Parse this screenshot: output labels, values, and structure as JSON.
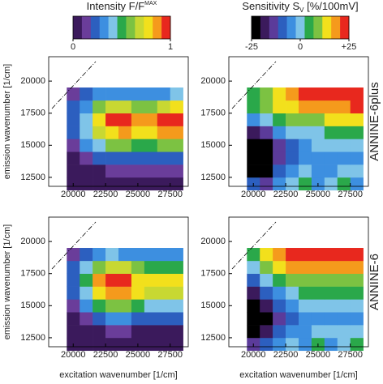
{
  "chart_data": [
    {
      "type": "heatmap",
      "colorbar": {
        "title": "Intensity F/F",
        "title_superscript": "MAX",
        "zlim": [
          0,
          1
        ],
        "ticks": [
          0,
          1
        ],
        "colors": [
          "#3b1a5c",
          "#6a3d9a",
          "#2c5fbf",
          "#3d8fe0",
          "#7fc4e8",
          "#2aa84a",
          "#7cc242",
          "#c8d832",
          "#f2e01c",
          "#f59a1c",
          "#e8281e"
        ]
      },
      "ylabel": "emission wavenumber [1/cm]",
      "xlabel": "excitation wavenumber [1/cm]",
      "xlim": [
        18100,
        28900
      ],
      "ylim": [
        11800,
        21900
      ],
      "xticks": [
        20000,
        22500,
        25000,
        27500
      ],
      "yticks": [
        12500,
        15000,
        17500,
        20000
      ],
      "x": [
        20000,
        21000,
        22000,
        23000,
        24000,
        25000,
        26000,
        27000,
        28000
      ],
      "y": [
        12000,
        13000,
        14000,
        15000,
        16000,
        17000,
        18000,
        19000
      ],
      "panels": [
        {
          "z": [
            [
              0.05,
              0.05,
              0.05,
              0.05,
              0.05,
              0.05,
              0.05,
              0.05,
              0.05
            ],
            [
              0.05,
              0.05,
              0.08,
              0.1,
              0.1,
              0.1,
              0.1,
              0.1,
              0.1
            ],
            [
              0.08,
              0.15,
              0.2,
              0.25,
              0.25,
              0.25,
              0.25,
              0.25,
              0.25
            ],
            [
              0.15,
              0.3,
              0.45,
              0.55,
              0.55,
              0.5,
              0.5,
              0.55,
              0.6
            ],
            [
              0.2,
              0.4,
              0.65,
              0.8,
              0.85,
              0.75,
              0.75,
              0.85,
              0.9
            ],
            [
              0.25,
              0.45,
              0.75,
              0.95,
              1,
              0.85,
              0.85,
              0.95,
              1
            ],
            [
              0.2,
              0.35,
              0.55,
              0.7,
              0.7,
              0.6,
              0.6,
              0.7,
              0.75
            ],
            [
              0.1,
              0.2,
              0.3,
              0.35,
              0.35,
              0.3,
              0.3,
              0.35,
              0.4
            ]
          ]
        },
        {
          "z": [
            [
              0.05,
              0.05,
              0.05,
              0.05,
              0.05,
              0.05,
              0.05,
              0.05,
              0.05
            ],
            [
              0.05,
              0.05,
              0.08,
              0.1,
              0.1,
              0.08,
              0.08,
              0.08,
              0.08
            ],
            [
              0.08,
              0.15,
              0.25,
              0.3,
              0.3,
              0.25,
              0.2,
              0.2,
              0.2
            ],
            [
              0.15,
              0.3,
              0.5,
              0.6,
              0.6,
              0.5,
              0.45,
              0.45,
              0.45
            ],
            [
              0.2,
              0.45,
              0.75,
              0.9,
              0.9,
              0.75,
              0.65,
              0.65,
              0.65
            ],
            [
              0.25,
              0.5,
              0.85,
              1,
              0.95,
              0.8,
              0.75,
              0.75,
              0.75
            ],
            [
              0.2,
              0.4,
              0.6,
              0.7,
              0.65,
              0.55,
              0.5,
              0.5,
              0.5
            ],
            [
              0.1,
              0.25,
              0.35,
              0.4,
              0.35,
              0.3,
              0.3,
              0.3,
              0.3
            ]
          ]
        }
      ]
    },
    {
      "type": "heatmap",
      "colorbar": {
        "title": "Sensitivity S",
        "title_subscript": "V",
        "title_suffix": " [%/100mV]",
        "zlim": [
          -25,
          25
        ],
        "ticks": [
          -25,
          0,
          {
            "value": 25,
            "label": "+25"
          }
        ],
        "colors": [
          "#000000",
          "#3b1a5c",
          "#5b3b9a",
          "#2c5fbf",
          "#3d8fe0",
          "#7fc4e8",
          "#2aa84a",
          "#7cc242",
          "#f2e01c",
          "#f59a1c",
          "#e8281e"
        ]
      },
      "xlabel": "excitation wavenumber [1/cm]",
      "xlim": [
        18100,
        28900
      ],
      "ylim": [
        11800,
        21900
      ],
      "xticks": [
        20000,
        22500,
        25000,
        27500
      ],
      "yticks": [
        12500,
        15000,
        17500,
        20000
      ],
      "x": [
        20000,
        21000,
        22000,
        23000,
        24000,
        25000,
        26000,
        27000,
        28000
      ],
      "y": [
        12000,
        13000,
        14000,
        15000,
        16000,
        17000,
        18000,
        19000
      ],
      "panels": [
        {
          "label": "ANNINE-6plus",
          "z": [
            [
              -10,
              -15,
              -5,
              0,
              5,
              -5,
              0,
              5,
              -5
            ],
            [
              -25,
              -22,
              -10,
              -5,
              0,
              -5,
              -5,
              0,
              0
            ],
            [
              -25,
              -25,
              -15,
              -8,
              -5,
              -5,
              -5,
              -5,
              -5
            ],
            [
              -25,
              -22,
              -15,
              -8,
              -5,
              -2,
              0,
              0,
              0
            ],
            [
              -18,
              -12,
              -5,
              0,
              0,
              2,
              3,
              5,
              5
            ],
            [
              -5,
              -2,
              5,
              8,
              10,
              10,
              12,
              12,
              12
            ],
            [
              5,
              8,
              12,
              15,
              18,
              20,
              20,
              20,
              22
            ],
            [
              5,
              10,
              15,
              20,
              22,
              22,
              23,
              23,
              25
            ]
          ]
        },
        {
          "label": "ANNINE-6",
          "z": [
            [
              -15,
              -10,
              -5,
              0,
              -5,
              5,
              -5,
              0,
              5
            ],
            [
              -25,
              -20,
              -10,
              -5,
              -5,
              0,
              0,
              0,
              0
            ],
            [
              -25,
              -25,
              -12,
              -8,
              -5,
              -3,
              -3,
              -3,
              -3
            ],
            [
              -25,
              -20,
              -10,
              -5,
              -2,
              0,
              0,
              0,
              0
            ],
            [
              -20,
              -10,
              -3,
              2,
              3,
              5,
              5,
              5,
              5
            ],
            [
              -8,
              0,
              5,
              10,
              10,
              10,
              10,
              10,
              10
            ],
            [
              0,
              8,
              15,
              18,
              18,
              18,
              18,
              18,
              18
            ],
            [
              5,
              12,
              20,
              22,
              22,
              22,
              22,
              22,
              22
            ]
          ]
        }
      ]
    }
  ]
}
